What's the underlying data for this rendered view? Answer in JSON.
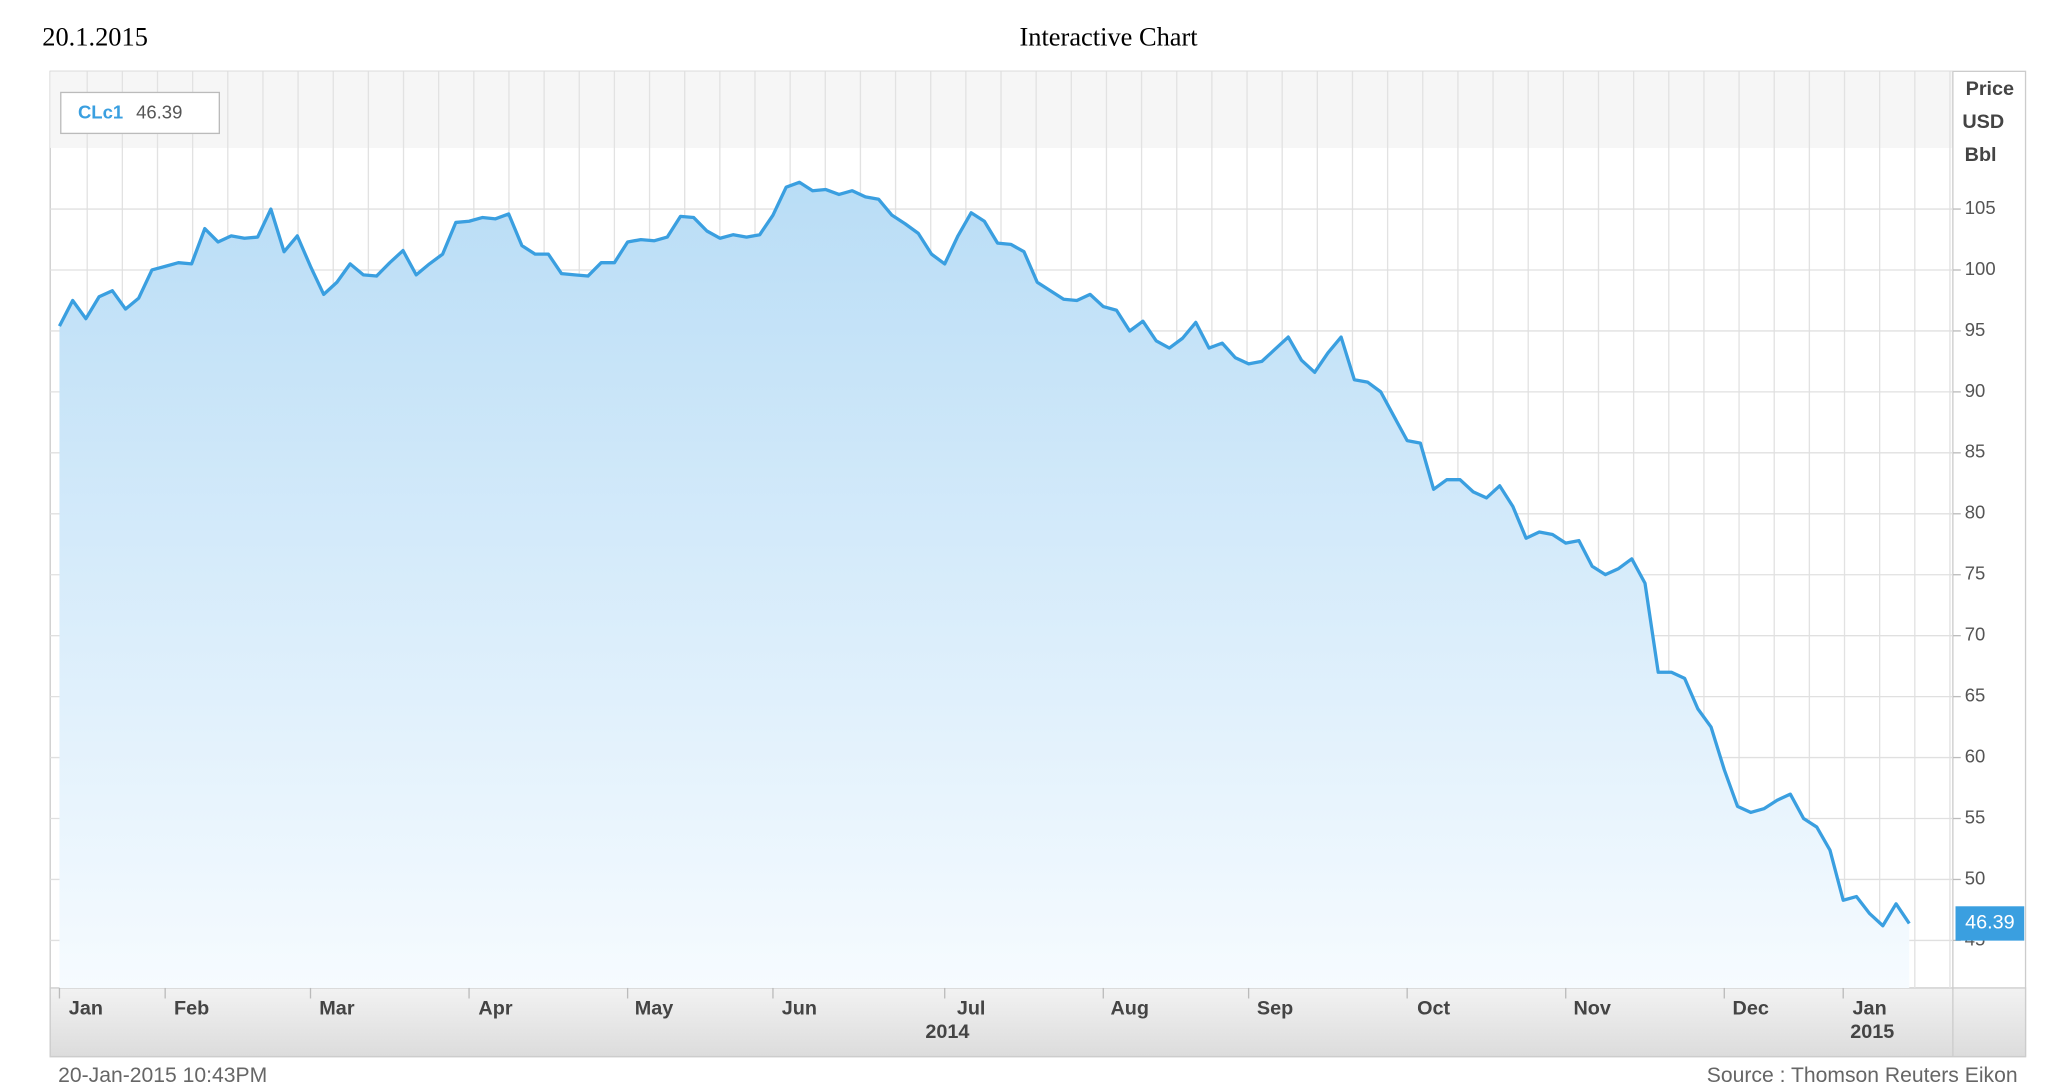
{
  "header": {
    "date": "20.1.2015",
    "title": "Interactive Chart"
  },
  "chart_data": {
    "type": "line",
    "legend": {
      "ric": "CLc1"
    },
    "y_axis_label": [
      "Price",
      "USD",
      "Bbl"
    ],
    "categories": [
      null,
      null,
      "Jan",
      null,
      null,
      null,
      null,
      null,
      null,
      null,
      "Feb",
      null,
      null,
      null,
      null,
      null,
      null,
      null,
      null,
      null,
      null,
      "Mar",
      null,
      null,
      null,
      null,
      null,
      null,
      null,
      null,
      null,
      null,
      null,
      "Apr",
      null,
      null,
      null,
      null,
      null,
      null,
      null,
      null,
      null,
      null,
      null,
      "May",
      null,
      null,
      null,
      null,
      null,
      null,
      null,
      null,
      null,
      null,
      "Jun",
      null,
      null,
      null,
      null,
      null,
      null,
      null,
      null,
      null,
      null,
      null,
      null,
      "Jul",
      null,
      null,
      null,
      null,
      null,
      null,
      null,
      null,
      null,
      null,
      null,
      "Aug",
      null,
      null,
      null,
      null,
      null,
      null,
      null,
      null,
      null,
      null,
      "Sep",
      null,
      null,
      null,
      null,
      null,
      null,
      null,
      null,
      null,
      null,
      null,
      "Oct",
      null,
      null,
      null,
      null,
      null,
      null,
      null,
      null,
      null,
      null,
      null,
      "Nov",
      null,
      null,
      null,
      null,
      null,
      null,
      null,
      null,
      null,
      null,
      null,
      "Dec",
      null,
      null,
      null,
      null,
      null,
      null,
      null,
      null,
      "Jan",
      null,
      null,
      null
    ],
    "x_year_labels": [
      "2014",
      "2015"
    ],
    "series": [
      {
        "name": "CLc1",
        "color": "#3a9fe0",
        "values": [
          95.4,
          97.5,
          96,
          97.8,
          98.3,
          96.8,
          97.7,
          100,
          100.3,
          100.6,
          100.5,
          103.4,
          102.3,
          102.8,
          102.6,
          102.7,
          105,
          101.5,
          102.8,
          100.3,
          98,
          99,
          100.5,
          99.6,
          99.5,
          100.6,
          101.6,
          99.6,
          100.5,
          101.3,
          103.9,
          104,
          104.3,
          104.2,
          104.6,
          102,
          101.3,
          101.3,
          99.7,
          99.6,
          99.5,
          100.6,
          100.6,
          102.3,
          102.5,
          102.4,
          102.7,
          104.4,
          104.3,
          103.2,
          102.6,
          102.9,
          102.7,
          102.9,
          104.5,
          106.8,
          107.2,
          106.5,
          106.6,
          106.2,
          106.5,
          106,
          105.8,
          104.5,
          103.8,
          103,
          101.3,
          100.5,
          102.8,
          104.7,
          104,
          102.2,
          102.1,
          101.5,
          99,
          98.3,
          97.6,
          97.5,
          98,
          97,
          96.7,
          95,
          95.8,
          94.2,
          93.6,
          94.4,
          95.7,
          93.6,
          94,
          92.8,
          92.3,
          92.5,
          93.5,
          94.5,
          92.6,
          91.6,
          93.2,
          94.5,
          91,
          90.8,
          90,
          88,
          86,
          85.8,
          82,
          82.8,
          82.8,
          81.8,
          81.3,
          82.3,
          80.6,
          78,
          78.5,
          78.3,
          77.6,
          77.8,
          75.7,
          75,
          75.5,
          76.3,
          74.3,
          67,
          67,
          66.5,
          64,
          62.5,
          59,
          56,
          55.5,
          55.8,
          56.5,
          57,
          55,
          54.3,
          52.4,
          48.3,
          48.6,
          47.2,
          46.2,
          48,
          46.39
        ]
      }
    ],
    "ylim": [
      41.1,
      116.3
    ],
    "yticks": [
      45,
      50,
      55,
      60,
      65,
      70,
      75,
      80,
      85,
      90,
      95,
      100,
      105
    ],
    "grid": true
  },
  "footer": {
    "timestamp": "20-Jan-2015 10:43PM",
    "source": "Source : Thomson Reuters Eikon"
  }
}
